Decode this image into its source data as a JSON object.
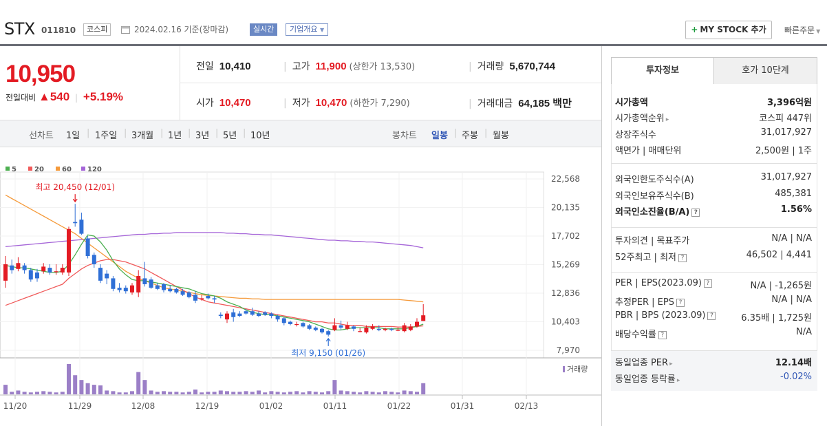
{
  "header": {
    "name": "STX",
    "code": "011810",
    "market": "코스피",
    "date": "2024.02.16 기준(장마감)",
    "realtime": "실시간",
    "company_overview": "기업개요",
    "my_stock": "MY STOCK 추가",
    "quick_order": "빠른주문"
  },
  "summary": {
    "price": "10,950",
    "change_label": "전일대비",
    "change": "▲540",
    "change_pct": "+5.19%",
    "prev_label": "전일",
    "prev": "10,410",
    "open_label": "시가",
    "open": "10,470",
    "high_label": "고가",
    "high": "11,900",
    "upper_limit": "(상한가 13,530)",
    "low_label": "저가",
    "low": "10,470",
    "lower_limit": "(하한가 7,290)",
    "volume_label": "거래량",
    "volume": "5,670,744",
    "amount_label": "거래대금",
    "amount": "64,185 백만"
  },
  "period_tabs": {
    "line_label": "선차트",
    "line": [
      "1일",
      "1주일",
      "3개월",
      "1년",
      "3년",
      "5년",
      "10년"
    ],
    "candle_label": "봉차트",
    "candle": [
      "일봉",
      "주봉",
      "월봉"
    ],
    "active_candle": "일봉"
  },
  "chart_data": {
    "type": "candlestick",
    "legend": [
      "5",
      "20",
      "60",
      "120"
    ],
    "ma_colors": [
      "#4caf50",
      "#f05a5a",
      "#f59a3a",
      "#a565d8"
    ],
    "up_color": "#e31b23",
    "down_color": "#2f6fd6",
    "y_ticks": [
      "22,568",
      "20,135",
      "17,702",
      "15,269",
      "12,836",
      "10,403",
      "7,970"
    ],
    "y_range": [
      7970,
      22568
    ],
    "x_ticks": [
      "11/20",
      "11/29",
      "12/08",
      "12/19",
      "01/02",
      "01/11",
      "01/22",
      "01/31",
      "02/13"
    ],
    "volume_label": "거래량",
    "high_annotation": "최고 20,450 (12/01)",
    "low_annotation": "최저 9,150 (01/26)",
    "candles": [
      {
        "o": 13900,
        "c": 15300,
        "h": 16000,
        "l": 13300
      },
      {
        "o": 15200,
        "c": 14800,
        "h": 15700,
        "l": 14500
      },
      {
        "o": 14900,
        "c": 15400,
        "h": 15900,
        "l": 14700
      },
      {
        "o": 15200,
        "c": 14800,
        "h": 15400,
        "l": 14500
      },
      {
        "o": 14800,
        "c": 14000,
        "h": 15000,
        "l": 13800
      },
      {
        "o": 14600,
        "c": 14100,
        "h": 14900,
        "l": 13800
      },
      {
        "o": 14700,
        "c": 15100,
        "h": 15400,
        "l": 14500
      },
      {
        "o": 15000,
        "c": 14600,
        "h": 15300,
        "l": 14400
      },
      {
        "o": 14700,
        "c": 14700,
        "h": 15300,
        "l": 14400
      },
      {
        "o": 14600,
        "c": 15000,
        "h": 15300,
        "l": 14400
      },
      {
        "o": 14600,
        "c": 18300,
        "h": 18500,
        "l": 14300
      },
      {
        "o": 18900,
        "c": 18800,
        "h": 20450,
        "l": 18500
      },
      {
        "o": 19100,
        "c": 17900,
        "h": 19700,
        "l": 17800
      },
      {
        "o": 17500,
        "c": 16000,
        "h": 17700,
        "l": 15800
      },
      {
        "o": 16100,
        "c": 15300,
        "h": 16300,
        "l": 15000
      },
      {
        "o": 15000,
        "c": 13900,
        "h": 15300,
        "l": 13700
      },
      {
        "o": 14500,
        "c": 14100,
        "h": 14800,
        "l": 13600
      },
      {
        "o": 14100,
        "c": 13200,
        "h": 14300,
        "l": 13000
      },
      {
        "o": 13300,
        "c": 13100,
        "h": 13700,
        "l": 12900
      },
      {
        "o": 13300,
        "c": 13000,
        "h": 13500,
        "l": 12800
      },
      {
        "o": 12900,
        "c": 13500,
        "h": 13700,
        "l": 12700
      },
      {
        "o": 12900,
        "c": 14300,
        "h": 14800,
        "l": 12500
      },
      {
        "o": 14100,
        "c": 13600,
        "h": 15500,
        "l": 13400
      },
      {
        "o": 14000,
        "c": 13300,
        "h": 14200,
        "l": 13200
      },
      {
        "o": 13500,
        "c": 13200,
        "h": 13700,
        "l": 13100
      },
      {
        "o": 13600,
        "c": 13100,
        "h": 13700,
        "l": 12900
      },
      {
        "o": 13200,
        "c": 13000,
        "h": 13500,
        "l": 12900
      },
      {
        "o": 13200,
        "c": 12900,
        "h": 13300,
        "l": 12800
      },
      {
        "o": 13000,
        "c": 12700,
        "h": 13200,
        "l": 12600
      },
      {
        "o": 12900,
        "c": 12500,
        "h": 13000,
        "l": 12400
      },
      {
        "o": 12700,
        "c": 12200,
        "h": 13000,
        "l": 12000
      },
      {
        "o": 12300,
        "c": 12400,
        "h": 12700,
        "l": 12200
      },
      {
        "o": 12600,
        "c": 12400,
        "h": 12800,
        "l": 12300
      },
      {
        "o": 12400,
        "c": 12300,
        "h": 12600,
        "l": 12000
      },
      {
        "o": 11000,
        "c": 10900,
        "h": 11200,
        "l": 10700
      },
      {
        "o": 10600,
        "c": 11100,
        "h": 11300,
        "l": 10300
      },
      {
        "o": 11200,
        "c": 10800,
        "h": 11500,
        "l": 10400
      },
      {
        "o": 11100,
        "c": 10900,
        "h": 11300,
        "l": 10800
      },
      {
        "o": 11300,
        "c": 11100,
        "h": 11500,
        "l": 11000
      },
      {
        "o": 11300,
        "c": 11000,
        "h": 11600,
        "l": 10900
      },
      {
        "o": 11100,
        "c": 10900,
        "h": 11300,
        "l": 10800
      },
      {
        "o": 11200,
        "c": 11000,
        "h": 11300,
        "l": 10900
      },
      {
        "o": 11100,
        "c": 10900,
        "h": 11200,
        "l": 10700
      },
      {
        "o": 10900,
        "c": 10600,
        "h": 11000,
        "l": 10400
      },
      {
        "o": 10700,
        "c": 10300,
        "h": 10800,
        "l": 10100
      },
      {
        "o": 10400,
        "c": 10200,
        "h": 10500,
        "l": 10100
      },
      {
        "o": 10200,
        "c": 10200,
        "h": 10400,
        "l": 10000
      },
      {
        "o": 10300,
        "c": 10000,
        "h": 10400,
        "l": 9900
      },
      {
        "o": 10100,
        "c": 9800,
        "h": 10200,
        "l": 9700
      },
      {
        "o": 9900,
        "c": 9700,
        "h": 10000,
        "l": 9600
      },
      {
        "o": 9800,
        "c": 9500,
        "h": 9900,
        "l": 9400
      },
      {
        "o": 9600,
        "c": 9300,
        "h": 9700,
        "l": 9150
      },
      {
        "o": 9700,
        "c": 10100,
        "h": 10700,
        "l": 9600
      },
      {
        "o": 10100,
        "c": 9900,
        "h": 10500,
        "l": 9700
      },
      {
        "o": 9800,
        "c": 10100,
        "h": 10400,
        "l": 9700
      },
      {
        "o": 10000,
        "c": 9800,
        "h": 10100,
        "l": 9600
      },
      {
        "o": 9600,
        "c": 9600,
        "h": 9900,
        "l": 9500
      },
      {
        "o": 9500,
        "c": 9900,
        "h": 10100,
        "l": 9400
      },
      {
        "o": 9800,
        "c": 10000,
        "h": 10200,
        "l": 9700
      },
      {
        "o": 9800,
        "c": 9700,
        "h": 10100,
        "l": 9600
      },
      {
        "o": 9700,
        "c": 9800,
        "h": 9900,
        "l": 9600
      },
      {
        "o": 9800,
        "c": 9700,
        "h": 9900,
        "l": 9600
      },
      {
        "o": 9700,
        "c": 9700,
        "h": 9900,
        "l": 9600
      },
      {
        "o": 9600,
        "c": 10100,
        "h": 10300,
        "l": 9500
      },
      {
        "o": 9700,
        "c": 10000,
        "h": 10200,
        "l": 9600
      },
      {
        "o": 10000,
        "c": 10400,
        "h": 10700,
        "l": 9900
      },
      {
        "o": 10470,
        "c": 10950,
        "h": 11900,
        "l": 10470
      }
    ],
    "volumes": [
      30,
      8,
      12,
      8,
      6,
      8,
      10,
      8,
      6,
      8,
      95,
      60,
      45,
      35,
      30,
      28,
      12,
      10,
      6,
      6,
      10,
      70,
      45,
      12,
      8,
      10,
      8,
      8,
      6,
      8,
      15,
      6,
      8,
      8,
      12,
      10,
      8,
      8,
      10,
      8,
      12,
      6,
      10,
      8,
      6,
      8,
      10,
      6,
      10,
      8,
      6,
      10,
      45,
      12,
      10,
      8,
      6,
      10,
      8,
      6,
      10,
      8,
      6,
      12,
      10,
      8,
      35
    ],
    "ma5": [
      15200,
      15100,
      15000,
      15000,
      14900,
      14800,
      14700,
      14600,
      14600,
      14700,
      15300,
      16100,
      17000,
      17800,
      17700,
      17200,
      16500,
      15600,
      14900,
      14400,
      14000,
      13900,
      13900,
      13800,
      13700,
      13600,
      13500,
      13400,
      13300,
      13200,
      13000,
      12800,
      12700,
      12600,
      12400,
      12100,
      11900,
      11700,
      11400,
      11200,
      11100,
      11000,
      11000,
      10900,
      10800,
      10700,
      10600,
      10500,
      10400,
      10200,
      10000,
      9800,
      9700,
      9700,
      9800,
      9900,
      9900,
      9900,
      9900,
      9900,
      9800,
      9800,
      9800,
      9800,
      9900,
      10000,
      10200
    ],
    "ma20": [
      11800,
      12000,
      12200,
      12400,
      12600,
      12800,
      13000,
      13200,
      13400,
      13600,
      14100,
      14500,
      14900,
      15200,
      15400,
      15600,
      15700,
      15700,
      15600,
      15500,
      15300,
      15100,
      14900,
      14600,
      14300,
      14000,
      13700,
      13400,
      13100,
      12800,
      12500,
      12300,
      12100,
      12000,
      11900,
      11800,
      11700,
      11600,
      11500,
      11400,
      11300,
      11200,
      11100,
      11000,
      10900,
      10800,
      10700,
      10600,
      10500,
      10400,
      10400,
      10300,
      10300,
      10200,
      10100,
      10100,
      10100,
      10000,
      10000,
      10000,
      10000,
      10000,
      9950,
      9950,
      9950,
      10000,
      10050
    ],
    "ma60": [
      21200,
      20900,
      20600,
      20300,
      20000,
      19700,
      19400,
      19100,
      18800,
      18500,
      18200,
      17900,
      17500,
      17100,
      16700,
      16300,
      15900,
      15500,
      15100,
      14700,
      14400,
      14100,
      13900,
      13700,
      13500,
      13300,
      13200,
      13100,
      13000,
      12900,
      12800,
      12700,
      12650,
      12600,
      12550,
      12500,
      12450,
      12400,
      12400,
      12350,
      12350,
      12300,
      12300,
      12300,
      12300,
      12300,
      12300,
      12300,
      12300,
      12300,
      12300,
      12300,
      12300,
      12300,
      12300,
      12300,
      12300,
      12300,
      12300,
      12300,
      12300,
      12300,
      12300,
      12250,
      12200,
      12150,
      12100
    ],
    "ma120": [
      16800,
      16850,
      16900,
      16950,
      17000,
      17050,
      17100,
      17150,
      17200,
      17250,
      17300,
      17350,
      17400,
      17450,
      17500,
      17550,
      17600,
      17650,
      17700,
      17750,
      17800,
      17850,
      17850,
      17900,
      17900,
      17950,
      17950,
      18000,
      18000,
      18000,
      18000,
      18000,
      18000,
      18000,
      18000,
      17950,
      17950,
      17900,
      17900,
      17850,
      17850,
      17800,
      17800,
      17750,
      17700,
      17650,
      17600,
      17550,
      17500,
      17450,
      17400,
      17350,
      17350,
      17300,
      17300,
      17250,
      17250,
      17200,
      17200,
      17150,
      17100,
      17050,
      17000,
      16950,
      16900,
      16800,
      16700
    ]
  },
  "right_panel": {
    "tabs": [
      "투자정보",
      "호가 10단계"
    ],
    "rows1": [
      {
        "k": "시가총액",
        "v": "3,396억원",
        "bold": true
      },
      {
        "k": "시가총액순위",
        "v": "코스피 447위"
      },
      {
        "k": "상장주식수",
        "v": "31,017,927"
      },
      {
        "k": "액면가 | 매매단위",
        "v": "2,500원 | 1주"
      }
    ],
    "rows2": [
      {
        "k": "외국인한도주식수(A)",
        "v": "31,017,927"
      },
      {
        "k": "외국인보유주식수(B)",
        "v": "485,381"
      },
      {
        "k": "외국인소진율(B/A)",
        "v": "1.56%",
        "bold": true
      }
    ],
    "rows3": [
      {
        "k": "투자의견 | 목표주가",
        "v": "N/A | N/A"
      },
      {
        "k": "52주최고 | 최저",
        "v": "46,502 | 4,441"
      }
    ],
    "rows4": [
      {
        "k": "PER | EPS(2023.09)",
        "v": "N/A | -1,265원"
      },
      {
        "k": "추정PER | EPS",
        "v": "N/A | N/A"
      },
      {
        "k": "PBR | BPS (2023.09)",
        "v": "6.35배 | 1,725원"
      },
      {
        "k": "배당수익률",
        "v": "N/A"
      }
    ],
    "rows5": [
      {
        "k": "동일업종 PER",
        "v": "12.14배",
        "bold": true
      },
      {
        "k": "동일업종 등락률",
        "v": "-0.02%",
        "blue": true
      }
    ]
  }
}
